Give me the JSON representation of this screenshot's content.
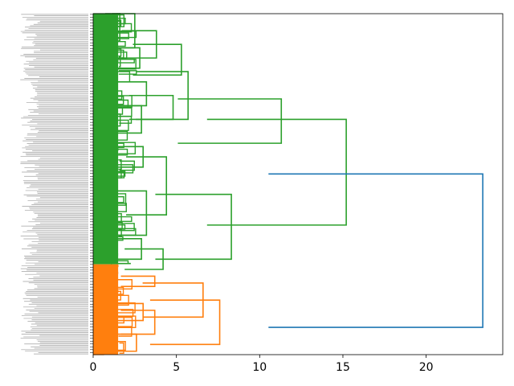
{
  "chart_data": {
    "type": "dendrogram",
    "orientation": "left",
    "title": "",
    "xlabel": "",
    "ylabel": "",
    "xlim": [
      0,
      24.6
    ],
    "x_ticks": [
      0,
      5,
      10,
      15,
      20
    ],
    "x_tick_labels": [
      "0",
      "5",
      "10",
      "15",
      "20"
    ],
    "grid": false,
    "leaf_count_approx": 240,
    "colors": {
      "cluster_1": "#2ca02c",
      "cluster_2": "#ff7f0e",
      "above_threshold": "#1f77b4"
    },
    "merges": [
      {
        "id": "g1",
        "height": 1.6,
        "span": [
          0.0,
          0.08
        ],
        "color": "#2ca02c"
      },
      {
        "id": "g2",
        "height": 2.5,
        "span": [
          0.0,
          0.1
        ],
        "color": "#2ca02c"
      },
      {
        "id": "g3",
        "height": 2.8,
        "span": [
          0.1,
          0.16
        ],
        "color": "#2ca02c"
      },
      {
        "id": "g4",
        "height": 3.8,
        "span": [
          0.05,
          0.13
        ],
        "color": "#2ca02c"
      },
      {
        "id": "g5",
        "height": 5.3,
        "span": [
          0.09,
          0.18
        ],
        "color": "#2ca02c"
      },
      {
        "id": "g6",
        "height": 3.2,
        "span": [
          0.2,
          0.27
        ],
        "color": "#2ca02c"
      },
      {
        "id": "g7",
        "height": 2.9,
        "span": [
          0.27,
          0.35
        ],
        "color": "#2ca02c"
      },
      {
        "id": "g8",
        "height": 4.8,
        "span": [
          0.24,
          0.31
        ],
        "color": "#2ca02c"
      },
      {
        "id": "g9",
        "height": 5.7,
        "span": [
          0.17,
          0.31
        ],
        "color": "#2ca02c"
      },
      {
        "id": "g10",
        "height": 11.3,
        "span": [
          0.25,
          0.38
        ],
        "color": "#2ca02c"
      },
      {
        "id": "g11",
        "height": 3.0,
        "span": [
          0.39,
          0.45
        ],
        "color": "#2ca02c"
      },
      {
        "id": "g12",
        "height": 4.4,
        "span": [
          0.42,
          0.59
        ],
        "color": "#2ca02c"
      },
      {
        "id": "g13",
        "height": 3.2,
        "span": [
          0.52,
          0.65
        ],
        "color": "#2ca02c"
      },
      {
        "id": "g14",
        "height": 2.9,
        "span": [
          0.66,
          0.72
        ],
        "color": "#2ca02c"
      },
      {
        "id": "g15",
        "height": 4.2,
        "span": [
          0.69,
          0.75
        ],
        "color": "#2ca02c"
      },
      {
        "id": "g16",
        "height": 8.3,
        "span": [
          0.53,
          0.72
        ],
        "color": "#2ca02c"
      },
      {
        "id": "g17",
        "height": 15.2,
        "span": [
          0.31,
          0.62
        ],
        "color": "#2ca02c"
      },
      {
        "id": "o1",
        "height": 3.7,
        "span": [
          0.77,
          0.8
        ],
        "color": "#ff7f0e"
      },
      {
        "id": "o2",
        "height": 6.6,
        "span": [
          0.79,
          0.89
        ],
        "color": "#ff7f0e"
      },
      {
        "id": "o3",
        "height": 3.0,
        "span": [
          0.85,
          0.9
        ],
        "color": "#ff7f0e"
      },
      {
        "id": "o4",
        "height": 3.7,
        "span": [
          0.87,
          0.94
        ],
        "color": "#ff7f0e"
      },
      {
        "id": "o5",
        "height": 2.6,
        "span": [
          0.94,
          0.99
        ],
        "color": "#ff7f0e"
      },
      {
        "id": "o6",
        "height": 7.6,
        "span": [
          0.84,
          0.97
        ],
        "color": "#ff7f0e"
      },
      {
        "id": "root",
        "height": 23.4,
        "span": [
          0.47,
          0.92
        ],
        "color": "#1f77b4"
      }
    ]
  }
}
